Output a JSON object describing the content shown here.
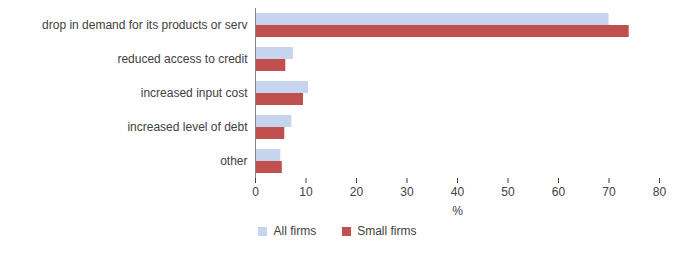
{
  "chart_data": {
    "type": "bar",
    "orientation": "horizontal",
    "categories": [
      "drop in demand for its products or serv",
      "reduced access to credit",
      "increased input cost",
      "increased level of debt",
      "other"
    ],
    "series": [
      {
        "name": "All firms",
        "color": "#c6d4ee",
        "values": [
          70,
          7.5,
          10.5,
          7.2,
          5
        ]
      },
      {
        "name": "Small firms",
        "color": "#c0504d",
        "values": [
          74,
          6,
          9.5,
          5.8,
          5.3
        ]
      }
    ],
    "xlabel": "%",
    "xlim": [
      0,
      80
    ],
    "xticks": [
      0,
      10,
      20,
      30,
      40,
      50,
      60,
      70,
      80
    ],
    "grid": false,
    "legend": "bottom"
  }
}
